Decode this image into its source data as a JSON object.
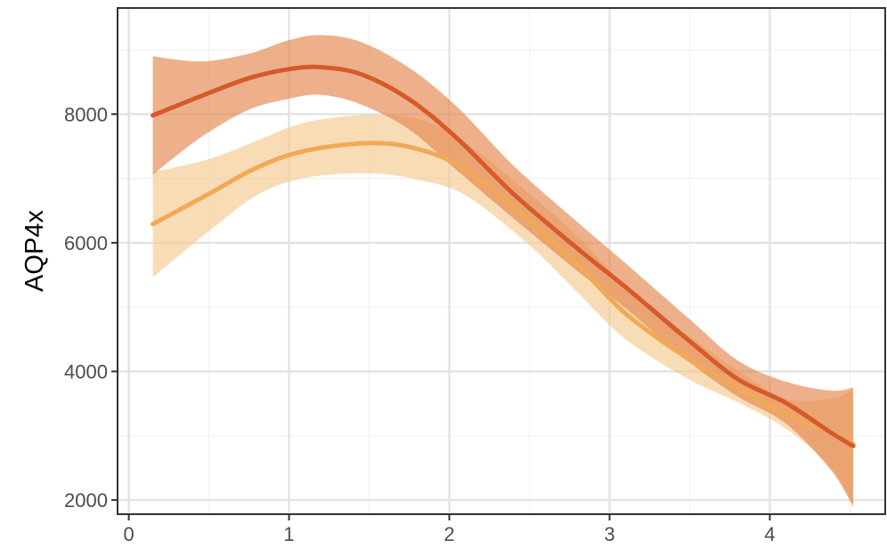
{
  "chart_data": {
    "type": "line",
    "title": "",
    "xlabel": "",
    "ylabel": "AQP4x",
    "xlim": [
      -0.07,
      4.72
    ],
    "ylim": [
      1780,
      9650
    ],
    "x_ticks": [
      0,
      1,
      2,
      3,
      4
    ],
    "x_tick_labels": [
      "0",
      "1",
      "2",
      "3",
      "4"
    ],
    "y_ticks": [
      2000,
      4000,
      6000,
      8000
    ],
    "y_tick_labels": [
      "2000",
      "4000",
      "6000",
      "8000"
    ],
    "grid": true,
    "legend": "none",
    "series": [
      {
        "color": "#f2a956",
        "band_color": "#f5c98e",
        "x": [
          0.15,
          0.5,
          0.8,
          1.1,
          1.5,
          1.8,
          2.1,
          2.5,
          2.8,
          3.1,
          3.5,
          3.8,
          4.1,
          4.38,
          4.52
        ],
        "y": [
          6290,
          6760,
          7170,
          7430,
          7550,
          7460,
          7140,
          6350,
          5660,
          4900,
          4180,
          3750,
          3340,
          3050,
          2870
        ],
        "lower": [
          5460,
          6180,
          6740,
          7010,
          7080,
          6980,
          6740,
          5960,
          5230,
          4500,
          3870,
          3520,
          3110,
          2510,
          1920
        ],
        "upper": [
          7100,
          7300,
          7590,
          7870,
          7990,
          7930,
          7560,
          6760,
          6100,
          5320,
          4540,
          4010,
          3570,
          3580,
          3700
        ]
      },
      {
        "color": "#d65a2a",
        "band_color": "#e3864d",
        "x": [
          0.15,
          0.45,
          0.75,
          1.0,
          1.2,
          1.45,
          1.75,
          2.05,
          2.4,
          2.8,
          3.1,
          3.5,
          3.8,
          4.1,
          4.38,
          4.52
        ],
        "y": [
          7980,
          8280,
          8560,
          8700,
          8730,
          8620,
          8230,
          7620,
          6760,
          5910,
          5310,
          4470,
          3880,
          3510,
          3050,
          2840
        ],
        "lower": [
          7060,
          7640,
          8070,
          8240,
          8300,
          8150,
          7760,
          7120,
          6380,
          5560,
          4980,
          4140,
          3610,
          3190,
          2470,
          1900
        ],
        "upper": [
          8900,
          8820,
          8940,
          9150,
          9230,
          9120,
          8720,
          8110,
          7200,
          6320,
          5680,
          4810,
          4170,
          3840,
          3700,
          3750
        ]
      }
    ]
  }
}
